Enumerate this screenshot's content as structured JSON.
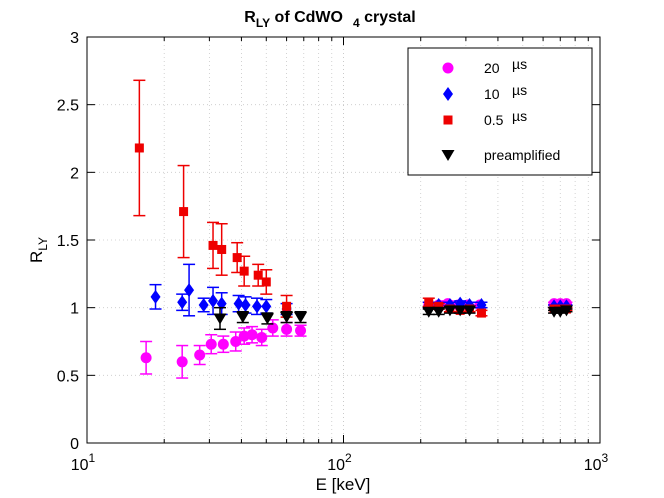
{
  "chart_data": {
    "type": "scatter",
    "title": {
      "base": "R",
      "sub": "LY",
      "mid": " of  CdWO",
      "sub2": "4",
      "tail": " crystal"
    },
    "xlabel": "E [keV]",
    "ylabel": {
      "base": "R",
      "sub": "LY"
    },
    "xscale": "log",
    "xlim": [
      10,
      1000
    ],
    "ylim": [
      0,
      3
    ],
    "xticks": [
      {
        "value": 10,
        "base": "10",
        "exp": "1"
      },
      {
        "value": 100,
        "base": "10",
        "exp": "2"
      },
      {
        "value": 1000,
        "base": "10",
        "exp": "3"
      }
    ],
    "yticks": [
      "0",
      "0.5",
      "1",
      "1.5",
      "2",
      "2.5",
      "3"
    ],
    "grid": true,
    "legend_position": "top-right",
    "series": [
      {
        "name": "20",
        "unit": "µs",
        "color": "#ff00ff",
        "marker": "circle",
        "points": [
          {
            "x": 17,
            "y": 0.63,
            "err": 0.12
          },
          {
            "x": 23.5,
            "y": 0.6,
            "err": 0.12
          },
          {
            "x": 27.5,
            "y": 0.65,
            "err": 0.07
          },
          {
            "x": 30.5,
            "y": 0.73,
            "err": 0.07
          },
          {
            "x": 34,
            "y": 0.73,
            "err": 0.06
          },
          {
            "x": 38,
            "y": 0.75,
            "err": 0.07
          },
          {
            "x": 41,
            "y": 0.79,
            "err": 0.06
          },
          {
            "x": 44,
            "y": 0.8,
            "err": 0.06
          },
          {
            "x": 48,
            "y": 0.78,
            "err": 0.06
          },
          {
            "x": 53,
            "y": 0.85,
            "err": 0.06
          },
          {
            "x": 60,
            "y": 0.84,
            "err": 0.05
          },
          {
            "x": 68,
            "y": 0.83,
            "err": 0.04
          },
          {
            "x": 215,
            "y": 1.02,
            "err": 0.02
          },
          {
            "x": 235,
            "y": 1.02,
            "err": 0.02
          },
          {
            "x": 255,
            "y": 1.03,
            "err": 0.02
          },
          {
            "x": 280,
            "y": 1.02,
            "err": 0.02
          },
          {
            "x": 305,
            "y": 1.02,
            "err": 0.02
          },
          {
            "x": 340,
            "y": 1.02,
            "err": 0.02
          },
          {
            "x": 662,
            "y": 1.03,
            "err": 0.01
          },
          {
            "x": 700,
            "y": 1.03,
            "err": 0.01
          },
          {
            "x": 740,
            "y": 1.03,
            "err": 0.01
          }
        ]
      },
      {
        "name": "10",
        "unit": "µs",
        "color": "#0000ff",
        "marker": "diamond",
        "points": [
          {
            "x": 18.5,
            "y": 1.08,
            "err": 0.09
          },
          {
            "x": 23.5,
            "y": 1.04,
            "err": 0.06
          },
          {
            "x": 25,
            "y": 1.13,
            "err": 0.19
          },
          {
            "x": 28.5,
            "y": 1.02,
            "err": 0.05
          },
          {
            "x": 31,
            "y": 1.05,
            "err": 0.1
          },
          {
            "x": 33.5,
            "y": 1.03,
            "err": 0.08
          },
          {
            "x": 39,
            "y": 1.03,
            "err": 0.06
          },
          {
            "x": 41.5,
            "y": 1.02,
            "err": 0.06
          },
          {
            "x": 46,
            "y": 1.01,
            "err": 0.06
          },
          {
            "x": 50,
            "y": 1.01,
            "err": 0.05
          },
          {
            "x": 60,
            "y": 0.99,
            "err": 0.04
          },
          {
            "x": 215,
            "y": 1.02,
            "err": 0.02
          },
          {
            "x": 235,
            "y": 1.02,
            "err": 0.02
          },
          {
            "x": 260,
            "y": 1.02,
            "err": 0.02
          },
          {
            "x": 285,
            "y": 1.03,
            "err": 0.02
          },
          {
            "x": 310,
            "y": 1.02,
            "err": 0.02
          },
          {
            "x": 345,
            "y": 1.02,
            "err": 0.02
          },
          {
            "x": 662,
            "y": 1.01,
            "err": 0.01
          },
          {
            "x": 700,
            "y": 1.01,
            "err": 0.01
          },
          {
            "x": 740,
            "y": 1.01,
            "err": 0.01
          }
        ]
      },
      {
        "name": "0.5",
        "unit": "µs",
        "color": "#ee0000",
        "marker": "square",
        "points": [
          {
            "x": 16,
            "y": 2.18,
            "err": 0.5
          },
          {
            "x": 23.8,
            "y": 1.71,
            "err": 0.34
          },
          {
            "x": 31,
            "y": 1.46,
            "err": 0.17
          },
          {
            "x": 33.5,
            "y": 1.43,
            "err": 0.19
          },
          {
            "x": 38.5,
            "y": 1.37,
            "err": 0.11
          },
          {
            "x": 41,
            "y": 1.27,
            "err": 0.11
          },
          {
            "x": 46.5,
            "y": 1.24,
            "err": 0.08
          },
          {
            "x": 50,
            "y": 1.19,
            "err": 0.09
          },
          {
            "x": 60,
            "y": 1.01,
            "err": 0.08
          },
          {
            "x": 215,
            "y": 1.04,
            "err": 0.03
          },
          {
            "x": 235,
            "y": 1.01,
            "err": 0.02
          },
          {
            "x": 260,
            "y": 0.99,
            "err": 0.02
          },
          {
            "x": 285,
            "y": 0.98,
            "err": 0.02
          },
          {
            "x": 310,
            "y": 0.99,
            "err": 0.02
          },
          {
            "x": 345,
            "y": 0.96,
            "err": 0.02
          },
          {
            "x": 662,
            "y": 0.99,
            "err": 0.01
          },
          {
            "x": 700,
            "y": 0.99,
            "err": 0.01
          },
          {
            "x": 740,
            "y": 0.99,
            "err": 0.01
          }
        ]
      },
      {
        "name": "preamplified",
        "unit": "",
        "color": "#000000",
        "marker": "triangle-down",
        "points": [
          {
            "x": 33,
            "y": 0.92,
            "err": 0.08
          },
          {
            "x": 40.5,
            "y": 0.93,
            "err": 0.04
          },
          {
            "x": 50.5,
            "y": 0.92,
            "err": 0.04
          },
          {
            "x": 60,
            "y": 0.93,
            "err": 0.04
          },
          {
            "x": 68,
            "y": 0.93,
            "err": 0.04
          },
          {
            "x": 215,
            "y": 0.97,
            "err": 0.02
          },
          {
            "x": 235,
            "y": 0.97,
            "err": 0.02
          },
          {
            "x": 260,
            "y": 0.98,
            "err": 0.02
          },
          {
            "x": 285,
            "y": 0.98,
            "err": 0.02
          },
          {
            "x": 310,
            "y": 0.98,
            "err": 0.02
          },
          {
            "x": 662,
            "y": 0.97,
            "err": 0.01
          },
          {
            "x": 700,
            "y": 0.97,
            "err": 0.01
          },
          {
            "x": 740,
            "y": 0.98,
            "err": 0.01
          }
        ]
      }
    ]
  }
}
